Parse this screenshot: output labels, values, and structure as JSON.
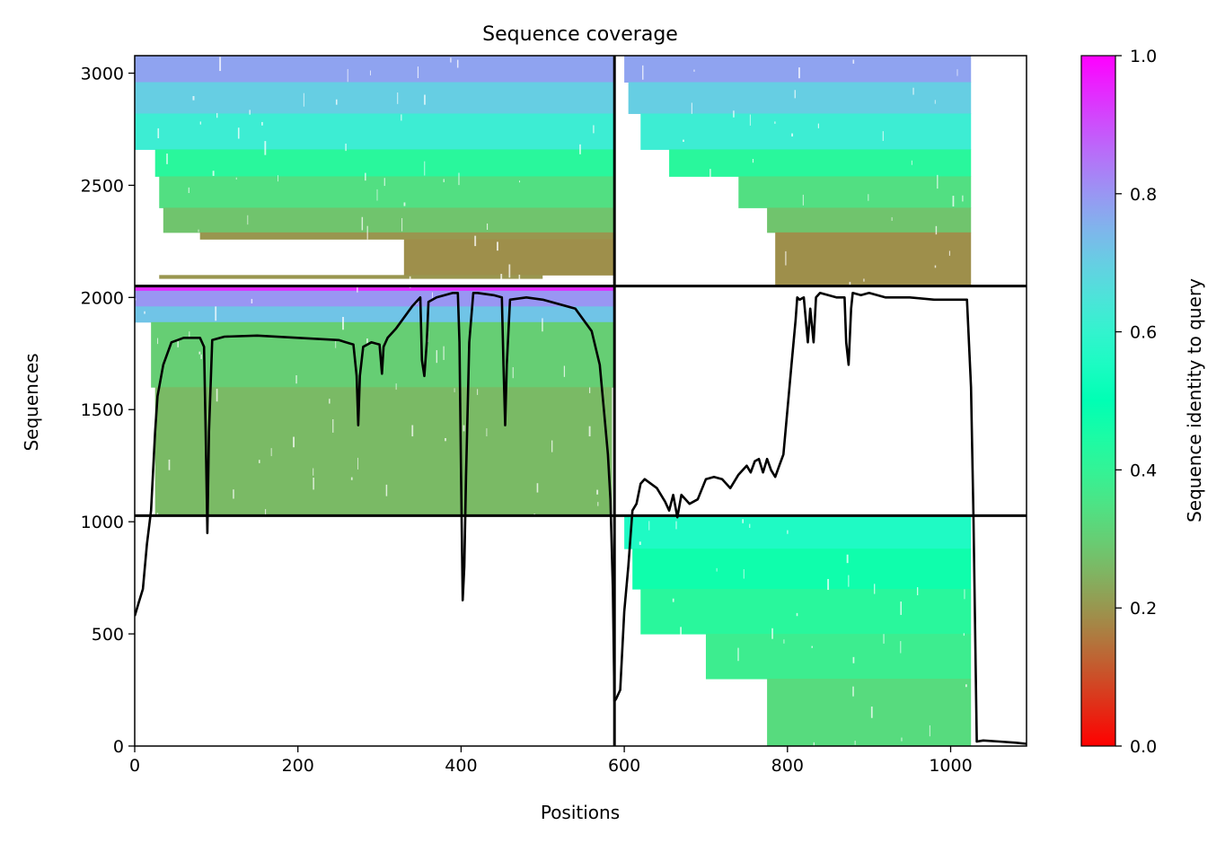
{
  "chart_data": {
    "type": "heatmap",
    "title": "Sequence coverage",
    "xlabel": "Positions",
    "ylabel": "Sequences",
    "xlim": [
      0,
      1093
    ],
    "ylim": [
      0,
      3078
    ],
    "x_ticks": [
      "0",
      "200",
      "400",
      "600",
      "800",
      "1000"
    ],
    "y_ticks": [
      "0",
      "500",
      "1000",
      "1500",
      "2000",
      "2500",
      "3000"
    ],
    "colorbar": {
      "label": "Sequence identity to query",
      "colormap": "rainbow_r",
      "range": [
        0,
        1
      ],
      "ticks": [
        "0.0",
        "0.2",
        "0.4",
        "0.6",
        "0.8",
        "1.0"
      ]
    },
    "chain_boundary_x": 588,
    "group_boundaries_y": [
      1027,
      2051
    ],
    "msa_blocks": [
      {
        "name": "chain A paired block",
        "x_range": [
          0,
          588
        ],
        "y_range": [
          2051,
          3078
        ],
        "bands": [
          {
            "y_range": [
              2960,
              3078
            ],
            "identity": 0.78,
            "x_range": [
              0,
              588
            ]
          },
          {
            "y_range": [
              2820,
              2960
            ],
            "identity": 0.7,
            "x_range": [
              0,
              588
            ]
          },
          {
            "y_range": [
              2660,
              2820
            ],
            "identity": 0.62,
            "x_range": [
              0,
              588
            ]
          },
          {
            "y_range": [
              2540,
              2660
            ],
            "identity": 0.42,
            "x_range": [
              25,
              588
            ]
          },
          {
            "y_range": [
              2400,
              2540
            ],
            "identity": 0.34,
            "x_range": [
              30,
              588
            ]
          },
          {
            "y_range": [
              2290,
              2400
            ],
            "identity": 0.28,
            "x_range": [
              35,
              588
            ]
          },
          {
            "y_range": [
              2260,
              2290
            ],
            "identity": 0.2,
            "x_range": [
              80,
              588
            ]
          },
          {
            "y_range": [
              2100,
              2260
            ],
            "identity": 0.19,
            "x_range": [
              330,
              588
            ]
          },
          {
            "y_range": [
              2085,
              2100
            ],
            "identity": 0.2,
            "x_range": [
              30,
              500
            ]
          }
        ]
      },
      {
        "name": "chain B paired block",
        "x_range": [
          588,
          1093
        ],
        "y_range": [
          2051,
          3078
        ],
        "bands": [
          {
            "y_range": [
              2960,
              3078
            ],
            "identity": 0.78,
            "x_range": [
              600,
              1025
            ]
          },
          {
            "y_range": [
              2820,
              2960
            ],
            "identity": 0.7,
            "x_range": [
              605,
              1025
            ]
          },
          {
            "y_range": [
              2660,
              2820
            ],
            "identity": 0.62,
            "x_range": [
              620,
              1025
            ]
          },
          {
            "y_range": [
              2540,
              2660
            ],
            "identity": 0.42,
            "x_range": [
              655,
              1025
            ]
          },
          {
            "y_range": [
              2400,
              2540
            ],
            "identity": 0.34,
            "x_range": [
              740,
              1025
            ]
          },
          {
            "y_range": [
              2290,
              2400
            ],
            "identity": 0.28,
            "x_range": [
              775,
              1025
            ]
          },
          {
            "y_range": [
              2051,
              2290
            ],
            "identity": 0.19,
            "x_range": [
              785,
              1025
            ]
          }
        ]
      },
      {
        "name": "chain A unpaired block",
        "x_range": [
          0,
          588
        ],
        "y_range": [
          1027,
          2051
        ],
        "bands": [
          {
            "y_range": [
              2030,
              2051
            ],
            "identity": 0.95,
            "x_range": [
              0,
              588
            ]
          },
          {
            "y_range": [
              1960,
              2030
            ],
            "identity": 0.8,
            "x_range": [
              0,
              588
            ]
          },
          {
            "y_range": [
              1890,
              1960
            ],
            "identity": 0.72,
            "x_range": [
              0,
              588
            ]
          },
          {
            "y_range": [
              1600,
              1890
            ],
            "identity": 0.3,
            "x_range": [
              20,
              588
            ]
          },
          {
            "y_range": [
              1027,
              1600
            ],
            "identity": 0.26,
            "x_range": [
              25,
              585
            ]
          }
        ]
      },
      {
        "name": "chain B unpaired block",
        "x_range": [
          588,
          1093
        ],
        "y_range": [
          0,
          1027
        ],
        "bands": [
          {
            "y_range": [
              880,
              1027
            ],
            "identity": 0.56,
            "x_range": [
              600,
              1025
            ]
          },
          {
            "y_range": [
              700,
              880
            ],
            "identity": 0.47,
            "x_range": [
              610,
              1025
            ]
          },
          {
            "y_range": [
              500,
              700
            ],
            "identity": 0.42,
            "x_range": [
              620,
              1025
            ]
          },
          {
            "y_range": [
              300,
              500
            ],
            "identity": 0.38,
            "x_range": [
              700,
              1025
            ]
          },
          {
            "y_range": [
              0,
              300
            ],
            "identity": 0.33,
            "x_range": [
              775,
              1025
            ]
          }
        ]
      }
    ],
    "coverage_line": {
      "name": "coverage",
      "color": "#000000",
      "x": [
        0,
        5,
        10,
        15,
        20,
        25,
        28,
        35,
        45,
        60,
        80,
        85,
        87,
        89,
        91,
        95,
        110,
        150,
        200,
        250,
        268,
        272,
        274,
        276,
        280,
        290,
        300,
        303,
        305,
        310,
        320,
        340,
        350,
        352,
        355,
        358,
        360,
        370,
        380,
        390,
        396,
        398,
        400,
        402,
        404,
        406,
        410,
        415,
        420,
        440,
        450,
        452,
        454,
        456,
        460,
        480,
        500,
        540,
        560,
        570,
        575,
        580,
        583,
        586,
        588,
        590,
        595,
        600,
        605,
        610,
        615,
        620,
        625,
        640,
        650,
        655,
        660,
        665,
        670,
        680,
        690,
        700,
        710,
        720,
        730,
        740,
        750,
        755,
        760,
        765,
        770,
        775,
        780,
        785,
        790,
        795,
        800,
        805,
        810,
        812,
        815,
        820,
        825,
        828,
        832,
        835,
        840,
        860,
        870,
        872,
        875,
        878,
        880,
        890,
        900,
        920,
        950,
        980,
        1000,
        1020,
        1025,
        1028,
        1032,
        1040,
        1060,
        1080,
        1093
      ],
      "y": [
        580,
        640,
        700,
        900,
        1050,
        1400,
        1560,
        1700,
        1800,
        1820,
        1820,
        1780,
        1400,
        950,
        1400,
        1810,
        1825,
        1830,
        1820,
        1810,
        1790,
        1650,
        1430,
        1650,
        1780,
        1800,
        1790,
        1660,
        1780,
        1820,
        1860,
        1960,
        2000,
        1720,
        1650,
        1800,
        1980,
        2000,
        2010,
        2020,
        2020,
        1800,
        1200,
        650,
        800,
        1200,
        1800,
        2020,
        2020,
        2010,
        2000,
        1700,
        1430,
        1700,
        1990,
        2000,
        1990,
        1950,
        1850,
        1700,
        1500,
        1300,
        1100,
        700,
        200,
        210,
        250,
        600,
        800,
        1050,
        1080,
        1170,
        1190,
        1150,
        1090,
        1050,
        1120,
        1020,
        1120,
        1080,
        1100,
        1190,
        1200,
        1190,
        1150,
        1210,
        1250,
        1220,
        1270,
        1280,
        1220,
        1280,
        1230,
        1200,
        1250,
        1300,
        1500,
        1700,
        1900,
        2000,
        1990,
        2000,
        1800,
        1950,
        1800,
        2000,
        2020,
        2000,
        2000,
        1800,
        1700,
        1950,
        2020,
        2010,
        2020,
        2000,
        2000,
        1990,
        1990,
        1990,
        1600,
        1027,
        20,
        25,
        20,
        15,
        10
      ]
    }
  }
}
